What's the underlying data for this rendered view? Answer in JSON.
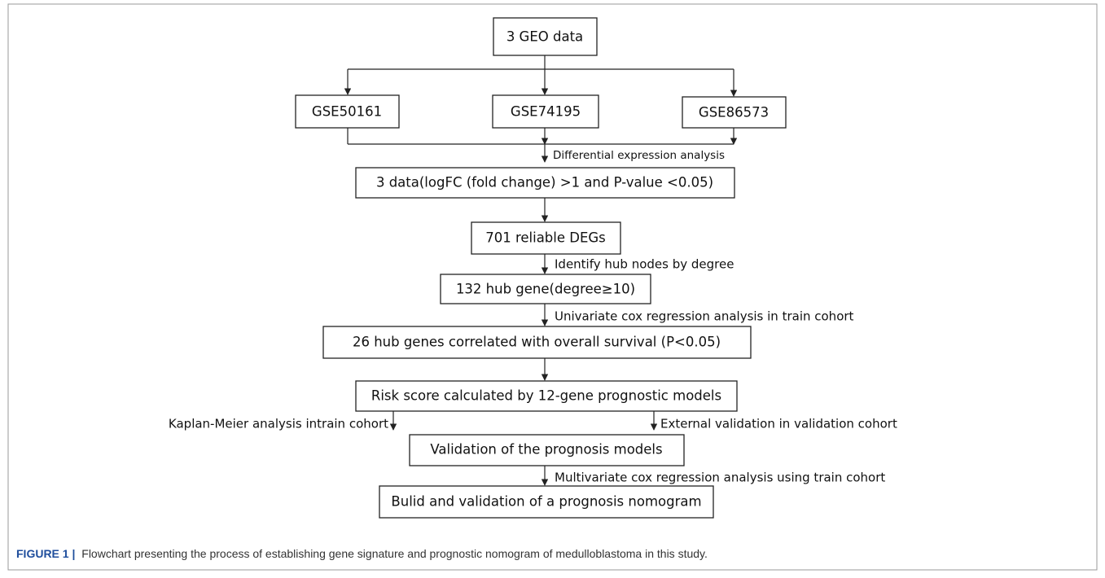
{
  "nodes": [
    {
      "label": "3 GEO data"
    },
    {
      "label": "GSE50161"
    },
    {
      "label": "GSE74195"
    },
    {
      "label": "GSE86573"
    },
    {
      "label": "3 data(logFC (fold change) >1 and P-value <0.05)"
    },
    {
      "label": "701 reliable DEGs"
    },
    {
      "label": "132 hub gene(degree≥10)"
    },
    {
      "label": "26 hub genes correlated with overall survival (P<0.05)"
    },
    {
      "label": "Risk score calculated by 12-gene prognostic models"
    },
    {
      "label": "Validation of the prognosis models"
    },
    {
      "label": "Bulid and validation of a prognosis nomogram"
    }
  ],
  "edges": [
    {
      "label": "Differential expression analysis"
    },
    {
      "label": "Identify hub nodes by degree"
    },
    {
      "label": "Univariate cox regression analysis in train cohort"
    },
    {
      "label": "Kaplan-Meier analysis intrain cohort"
    },
    {
      "label": "External validation in validation cohort"
    },
    {
      "label": "Multivariate cox regression analysis using train cohort"
    }
  ],
  "caption": {
    "label": "FIGURE 1 |",
    "text": "Flowchart presenting the process of establishing gene signature and prognostic nomogram of medulloblastoma in this study."
  }
}
